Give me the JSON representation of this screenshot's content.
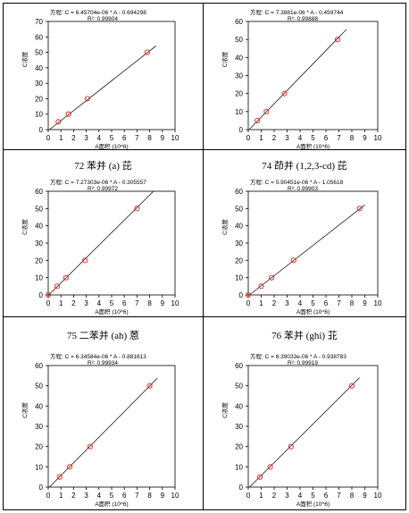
{
  "panels": [
    {
      "caption": "",
      "chart_data": {
        "type": "scatter",
        "equation": "方程: C = 6.45704e-06 * A - 0.694298",
        "r2": "R²: 0.99904",
        "xlabel": "A面积 (10^6)",
        "ylabel": "C浓度",
        "xlim": [
          0,
          10
        ],
        "ylim": [
          0,
          70
        ],
        "xticks": [
          0,
          1,
          2,
          3,
          4,
          5,
          6,
          7,
          8,
          9,
          10
        ],
        "yticks": [
          0,
          10,
          20,
          30,
          40,
          50,
          60,
          70
        ],
        "points": [
          [
            0.8,
            5
          ],
          [
            1.6,
            10
          ],
          [
            3.1,
            20
          ],
          [
            7.8,
            50
          ]
        ],
        "line": {
          "slope": 6.45704,
          "intercept": -0.694298,
          "x_range": [
            0.1,
            8.5
          ]
        }
      }
    },
    {
      "caption": "",
      "chart_data": {
        "type": "scatter",
        "equation": "方程: C = 7.3881e-06 * A - 0.459744",
        "r2": "R²: 0.99888",
        "xlabel": "A面积 (10^6)",
        "ylabel": "C浓度",
        "xlim": [
          0,
          10
        ],
        "ylim": [
          0,
          60
        ],
        "xticks": [
          0,
          1,
          2,
          3,
          4,
          5,
          6,
          7,
          8,
          9,
          10
        ],
        "yticks": [
          0,
          10,
          20,
          30,
          40,
          50,
          60
        ],
        "points": [
          [
            0.7,
            5
          ],
          [
            1.4,
            10
          ],
          [
            2.8,
            20
          ],
          [
            6.9,
            50
          ]
        ],
        "line": {
          "slope": 7.3881,
          "intercept": -0.459744,
          "x_range": [
            0.1,
            7.6
          ]
        }
      }
    },
    {
      "caption": "72 苯并 (a) 芘",
      "chart_data": {
        "type": "scatter",
        "equation": "方程: C = 7.27303e-06 * A - 0.305557",
        "r2": "R²: 0.99972",
        "xlabel": "A面积 (10^6)",
        "ylabel": "C浓度",
        "xlim": [
          0,
          10
        ],
        "ylim": [
          0,
          60
        ],
        "xticks": [
          0,
          1,
          2,
          3,
          4,
          5,
          6,
          7,
          8,
          9,
          10
        ],
        "yticks": [
          0,
          10,
          20,
          30,
          40,
          50,
          60
        ],
        "points": [
          [
            0,
            0
          ],
          [
            0.7,
            5
          ],
          [
            1.4,
            10
          ],
          [
            2.9,
            20
          ],
          [
            7.0,
            50
          ]
        ],
        "line": {
          "slope": 7.27303,
          "intercept": -0.305557,
          "x_range": [
            0.05,
            8.3
          ]
        }
      }
    },
    {
      "caption": "74 茚并 (1,2,3-cd) 芘",
      "chart_data": {
        "type": "scatter",
        "equation": "方程: C = 5.90451e-06 * A - 1.05618",
        "r2": "R²: 0.99903",
        "xlabel": "A面积 (10^6)",
        "ylabel": "C浓度",
        "xlim": [
          0,
          10
        ],
        "ylim": [
          0,
          60
        ],
        "xticks": [
          0,
          1,
          2,
          3,
          4,
          5,
          6,
          7,
          8,
          9,
          10
        ],
        "yticks": [
          0,
          10,
          20,
          30,
          40,
          50,
          60
        ],
        "points": [
          [
            0,
            0
          ],
          [
            1.0,
            5
          ],
          [
            1.8,
            10
          ],
          [
            3.5,
            20
          ],
          [
            8.6,
            50
          ]
        ],
        "line": {
          "slope": 5.90451,
          "intercept": -1.05618,
          "x_range": [
            0.1,
            9.0
          ]
        }
      }
    },
    {
      "caption": "75 二苯并 (ah) 蒽",
      "chart_data": {
        "type": "scatter",
        "equation": "方程: C = 6.34584e-06 * A - 0.881613",
        "r2": "R²: 0.99934",
        "xlabel": "A面积 (10^6)",
        "ylabel": "C浓度",
        "xlim": [
          0,
          10
        ],
        "ylim": [
          0,
          60
        ],
        "xticks": [
          0,
          1,
          2,
          3,
          4,
          5,
          6,
          7,
          8,
          9,
          10
        ],
        "yticks": [
          0,
          10,
          20,
          30,
          40,
          50,
          60
        ],
        "points": [
          [
            0.9,
            5
          ],
          [
            1.7,
            10
          ],
          [
            3.3,
            20
          ],
          [
            8.0,
            50
          ]
        ],
        "line": {
          "slope": 6.34584,
          "intercept": -0.881613,
          "x_range": [
            0.1,
            8.6
          ]
        }
      }
    },
    {
      "caption": "76 苯并 (ghi) 苝",
      "chart_data": {
        "type": "scatter",
        "equation": "方程: C = 6.39033e-06 * A - 0.938783",
        "r2": "R²: 0.99919",
        "xlabel": "A面积 (10^6)",
        "ylabel": "C浓度",
        "xlim": [
          0,
          10
        ],
        "ylim": [
          0,
          60
        ],
        "xticks": [
          0,
          1,
          2,
          3,
          4,
          5,
          6,
          7,
          8,
          9,
          10
        ],
        "yticks": [
          0,
          10,
          20,
          30,
          40,
          50,
          60
        ],
        "points": [
          [
            0.9,
            5
          ],
          [
            1.7,
            10
          ],
          [
            3.3,
            20
          ],
          [
            8.0,
            50
          ]
        ],
        "line": {
          "slope": 6.39033,
          "intercept": -0.938783,
          "x_range": [
            0.1,
            8.6
          ]
        }
      }
    }
  ]
}
